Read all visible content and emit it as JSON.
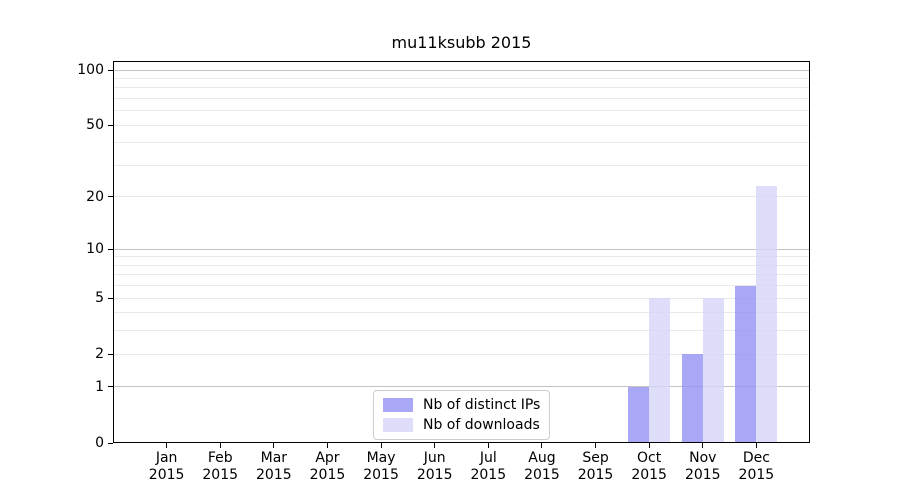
{
  "chart_data": {
    "type": "bar",
    "title": "mu11ksubb 2015",
    "xlabel": "",
    "ylabel": "",
    "categories": [
      "Jan",
      "Feb",
      "Mar",
      "Apr",
      "May",
      "Jun",
      "Jul",
      "Aug",
      "Sep",
      "Oct",
      "Nov",
      "Dec"
    ],
    "tick_year": "2015",
    "series": [
      {
        "name": "Nb of distinct IPs",
        "color": "rgba(146,146,245,0.8)",
        "values": [
          0,
          0,
          0,
          0,
          0,
          0,
          0,
          0,
          0,
          1,
          2,
          6
        ]
      },
      {
        "name": "Nb of downloads",
        "color": "rgba(214,214,249,0.8)",
        "values": [
          0,
          0,
          0,
          0,
          0,
          0,
          0,
          0,
          0,
          5,
          5,
          23
        ]
      }
    ],
    "yscale": "log1p",
    "ylim": [
      0,
      112
    ],
    "yticks": [
      0,
      1,
      2,
      5,
      10,
      20,
      50,
      100
    ],
    "major_gridlines": [
      1,
      10,
      100
    ],
    "minor_gridlines": [
      2,
      3,
      4,
      5,
      6,
      7,
      8,
      9,
      20,
      30,
      40,
      50,
      60,
      70,
      80,
      90
    ],
    "grid": true,
    "legend_position": "lower center",
    "colors": {
      "bar_distinct_ips": "rgba(146,146,245,0.8)",
      "bar_downloads": "rgba(214,214,249,0.8)",
      "grid_major": "#c3c3c3",
      "grid_minor": "#e9e9e9",
      "axis": "#000000"
    }
  }
}
